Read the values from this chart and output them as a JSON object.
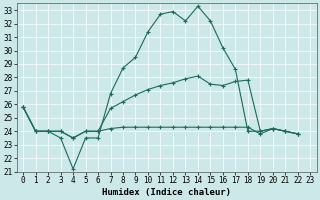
{
  "xlabel": "Humidex (Indice chaleur)",
  "bg_color": "#cce8e8",
  "line_color": "#1a6b5a",
  "xlim": [
    -0.5,
    23.5
  ],
  "ylim": [
    21,
    33.5
  ],
  "yticks": [
    21,
    22,
    23,
    24,
    25,
    26,
    27,
    28,
    29,
    30,
    31,
    32,
    33
  ],
  "xticks": [
    0,
    1,
    2,
    3,
    4,
    5,
    6,
    7,
    8,
    9,
    10,
    11,
    12,
    13,
    14,
    15,
    16,
    17,
    18,
    19,
    20,
    21,
    22,
    23
  ],
  "series": [
    [
      25.8,
      24.0,
      24.0,
      23.5,
      21.2,
      23.5,
      23.5,
      26.8,
      28.7,
      29.5,
      31.4,
      32.7,
      32.9,
      32.2,
      33.3,
      32.2,
      30.2,
      28.6,
      24.0,
      24.0,
      24.2,
      24.0,
      23.8
    ],
    [
      25.8,
      24.0,
      24.0,
      24.0,
      23.5,
      24.0,
      24.0,
      25.7,
      26.2,
      26.7,
      27.1,
      27.4,
      27.6,
      27.9,
      28.1,
      27.5,
      27.4,
      27.7,
      27.8,
      24.0,
      24.2,
      24.0,
      23.8
    ],
    [
      25.8,
      24.0,
      24.0,
      24.0,
      23.5,
      24.0,
      24.0,
      24.2,
      24.3,
      24.3,
      24.3,
      24.3,
      24.3,
      24.3,
      24.3,
      24.3,
      24.3,
      24.3,
      24.3,
      23.8,
      24.2,
      24.0,
      23.8
    ]
  ],
  "marker": "+",
  "markersize": 3,
  "linewidth": 0.8,
  "tick_fontsize": 5.5,
  "xlabel_fontsize": 6.5
}
